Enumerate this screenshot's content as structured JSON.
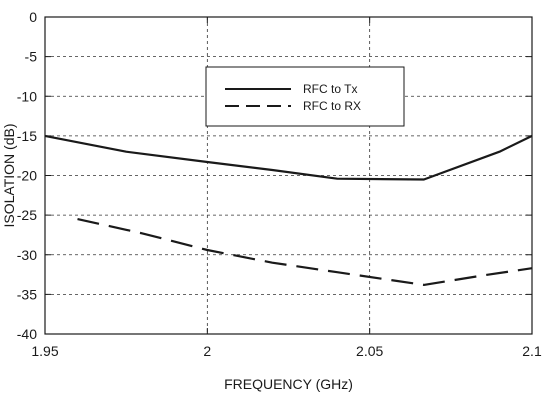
{
  "chart_data": {
    "type": "line",
    "xlabel": "FREQUENCY (GHz)",
    "ylabel": "ISOLATION (dB)",
    "xlim": [
      1.95,
      2.1
    ],
    "ylim": [
      -40,
      0
    ],
    "x_ticks": [
      1.95,
      2.0,
      2.05,
      2.1
    ],
    "x_tick_labels": [
      "1.95",
      "2",
      "2.05",
      "2.1"
    ],
    "y_ticks": [
      0,
      -5,
      -10,
      -15,
      -20,
      -25,
      -30,
      -35,
      -40
    ],
    "y_tick_labels": [
      "0",
      "-5",
      "-10",
      "-15",
      "-20",
      "-25",
      "-30",
      "-35",
      "-40"
    ],
    "grid": true,
    "legend_position": "top-center",
    "series": [
      {
        "name": "RFC to Tx",
        "style": "solid",
        "color": "#1a1a1a",
        "x": [
          1.95,
          1.975,
          2.0,
          2.02,
          2.04,
          2.0667,
          2.09,
          2.1
        ],
        "y": [
          -15.0,
          -17.0,
          -18.3,
          -19.3,
          -20.4,
          -20.5,
          -17.0,
          -15.0
        ]
      },
      {
        "name": "RFC to RX",
        "style": "dashed",
        "color": "#1a1a1a",
        "x": [
          1.96,
          1.98,
          2.0,
          2.02,
          2.04,
          2.0667,
          2.085,
          2.1
        ],
        "y": [
          -25.5,
          -27.3,
          -29.4,
          -31.0,
          -32.2,
          -33.8,
          -32.6,
          -31.7
        ]
      }
    ]
  }
}
